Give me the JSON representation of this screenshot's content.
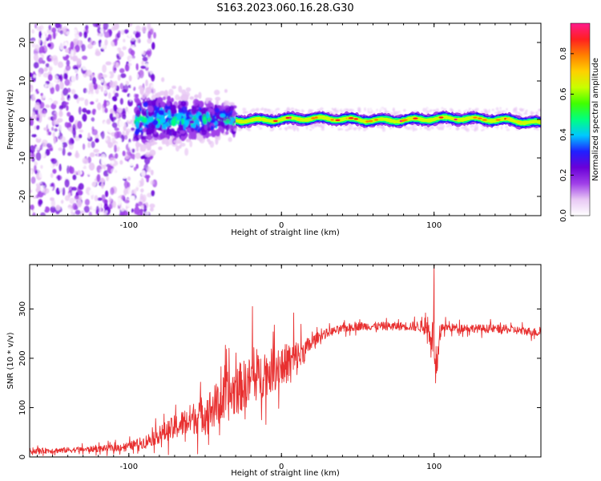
{
  "figure": {
    "title": "S163.2023.060.16.28.G30"
  },
  "chart_data": [
    {
      "type": "heatmap",
      "xlabel": "Height of straight line (km)",
      "ylabel": "Frequency (Hz)",
      "xlim": [
        -165,
        170
      ],
      "ylim": [
        -25,
        25
      ],
      "x_ticks": [
        -100,
        0,
        100
      ],
      "y_ticks": [
        -20,
        -10,
        0,
        10,
        20
      ],
      "colorbar": {
        "label": "Normalized spectral amplitude",
        "range": [
          0,
          0.95
        ],
        "ticks": [
          0.0,
          0.2,
          0.4,
          0.6,
          0.8
        ],
        "tick_labels": [
          "0.0",
          "0.2",
          "0.4",
          "0.6",
          "0.8"
        ],
        "colormap": [
          "#ffffff",
          "#e8c8f4",
          "#a040e8",
          "#6a00d8",
          "#2020ff",
          "#00c8ff",
          "#00ff80",
          "#40ff00",
          "#c8ff00",
          "#ffd000",
          "#ff8000",
          "#ff2020",
          "#ff1a8c"
        ]
      },
      "regions": [
        {
          "name": "noise",
          "x_range": [
            -165,
            -95
          ],
          "freq_spread": 25,
          "amplitude": 0.12
        },
        {
          "name": "transition",
          "x_range": [
            -95,
            -30
          ],
          "freq_spread": 6,
          "amplitude": 0.3
        },
        {
          "name": "tone",
          "x_range": [
            -30,
            170
          ],
          "freq_center": 0,
          "freq_halfwidth": 1.2,
          "amplitude": 0.85
        }
      ]
    },
    {
      "type": "line",
      "xlabel": "Height of straight line (km)",
      "ylabel": "SNR (10 * v/v)",
      "xlim": [
        -165,
        170
      ],
      "ylim": [
        0,
        390
      ],
      "x_ticks": [
        -100,
        0,
        100
      ],
      "y_ticks": [
        0,
        100,
        200,
        300
      ],
      "series": [
        {
          "color": "#e83030",
          "x": [
            -165,
            -150,
            -130,
            -110,
            -100,
            -90,
            -80,
            -70,
            -60,
            -50,
            -40,
            -30,
            -20,
            -10,
            0,
            10,
            15,
            20,
            25,
            30,
            40,
            50,
            60,
            70,
            80,
            90,
            95,
            100,
            101,
            105,
            110,
            120,
            130,
            140,
            150,
            160,
            170
          ],
          "y": [
            12,
            13,
            15,
            18,
            22,
            30,
            45,
            60,
            75,
            90,
            110,
            135,
            155,
            170,
            185,
            200,
            215,
            232,
            245,
            252,
            260,
            265,
            265,
            265,
            265,
            265,
            262,
            240,
            150,
            265,
            262,
            262,
            260,
            260,
            258,
            255,
            252
          ],
          "noise": [
            8,
            8,
            8,
            10,
            12,
            18,
            25,
            35,
            45,
            55,
            70,
            75,
            70,
            65,
            60,
            55,
            35,
            20,
            14,
            12,
            12,
            12,
            12,
            12,
            12,
            15,
            25,
            60,
            60,
            15,
            12,
            12,
            12,
            12,
            12,
            12,
            12
          ]
        }
      ],
      "spikes": [
        {
          "x": -19,
          "y": 305
        },
        {
          "x": 8,
          "y": 292
        },
        {
          "x": 100,
          "y": 390
        },
        {
          "x": 101,
          "y": 150
        }
      ]
    }
  ]
}
